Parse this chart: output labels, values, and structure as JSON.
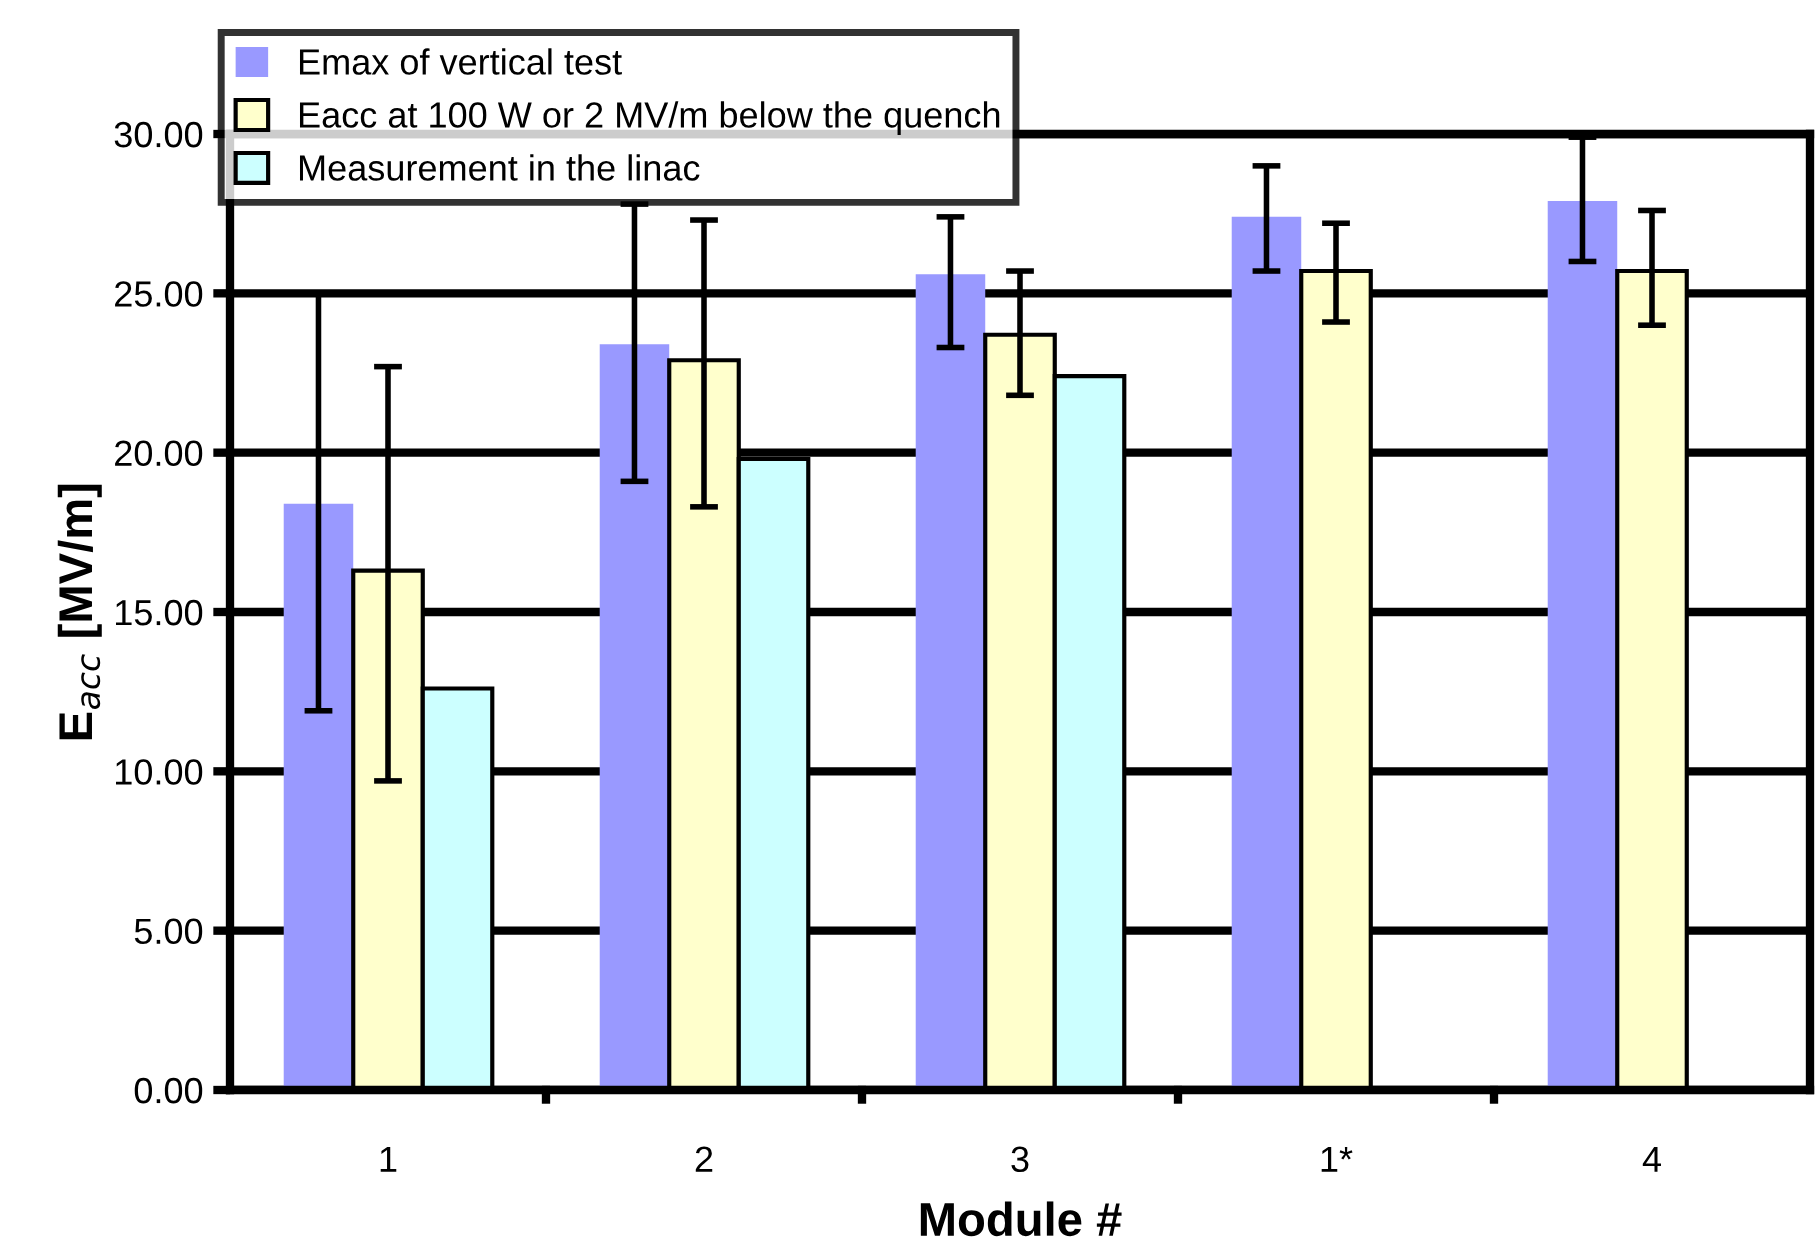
{
  "chart_data": {
    "type": "bar",
    "xlabel": "Module #",
    "ylabel": "E$_{acc}$ [MV/m]",
    "categories": [
      "1",
      "2",
      "3",
      "1*",
      "4"
    ],
    "series": [
      {
        "name": "Emax of vertical test",
        "color": "#9999ff",
        "values": [
          18.4,
          23.4,
          25.6,
          27.4,
          27.9
        ],
        "errors": [
          [
            11.9,
            25.0
          ],
          [
            19.1,
            27.8
          ],
          [
            23.3,
            27.4
          ],
          [
            25.7,
            29.0
          ],
          [
            26.0,
            29.9
          ]
        ]
      },
      {
        "name": "Eacc at 100 W or 2 MV/m below the quench",
        "color": "#ffffcc",
        "values": [
          16.3,
          22.9,
          23.7,
          25.7,
          25.7
        ],
        "errors": [
          [
            9.7,
            22.7
          ],
          [
            18.3,
            27.3
          ],
          [
            21.8,
            25.7
          ],
          [
            24.1,
            27.2
          ],
          [
            24.0,
            27.6
          ]
        ]
      },
      {
        "name": "Measurement in the linac",
        "color": "#ccffff",
        "values": [
          12.6,
          19.8,
          22.4,
          null,
          null
        ]
      }
    ],
    "ylim": [
      0,
      30
    ],
    "yticks": [
      {
        "value": 0,
        "label": "0.00"
      },
      {
        "value": 5,
        "label": "5.00"
      },
      {
        "value": 10,
        "label": "10.00"
      },
      {
        "value": 15,
        "label": "15.00"
      },
      {
        "value": 20,
        "label": "20.00"
      },
      {
        "value": 25,
        "label": "25.00"
      },
      {
        "value": 30,
        "label": "30.00"
      }
    ],
    "grid": "y",
    "legend": "top left"
  }
}
